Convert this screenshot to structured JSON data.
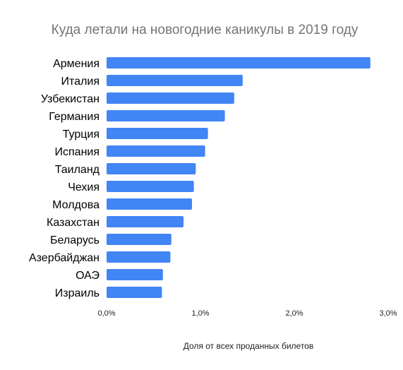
{
  "chart_data": {
    "type": "bar",
    "orientation": "horizontal",
    "title": "Куда летали на новогодние каникулы в 2019 году",
    "xlabel": "Доля от всех проданных билетов",
    "ylabel": "",
    "categories": [
      "Армения",
      "Италия",
      "Узбекистан",
      "Германия",
      "Турция",
      "Испания",
      "Таиланд",
      "Чехия",
      "Молдова",
      "Казахстан",
      "Беларусь",
      "Азербайджан",
      "ОАЭ",
      "Израиль"
    ],
    "values": [
      2.81,
      1.45,
      1.36,
      1.26,
      1.08,
      1.05,
      0.95,
      0.93,
      0.91,
      0.82,
      0.69,
      0.68,
      0.6,
      0.59
    ],
    "xlim": [
      0,
      3
    ],
    "x_ticks": [
      0,
      1,
      2,
      3
    ],
    "x_tick_labels": [
      "0,0%",
      "1,0%",
      "2,0%",
      "3,0%"
    ],
    "grid": false,
    "legend": "none",
    "bar_color": "#4285f4",
    "title_color": "#757575"
  }
}
